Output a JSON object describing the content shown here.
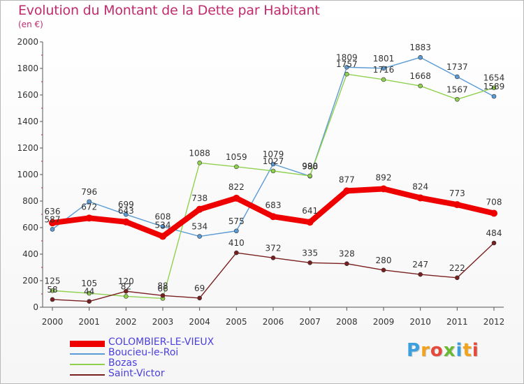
{
  "chart_data": {
    "type": "line",
    "title": "Evolution du Montant de la Dette par Habitant",
    "subtitle": "(en €)",
    "x": [
      "2000",
      "2001",
      "2002",
      "2003",
      "2004",
      "2005",
      "2006",
      "2007",
      "2008",
      "2009",
      "2010",
      "2011",
      "2012"
    ],
    "yticks": [
      "0",
      "200",
      "400",
      "600",
      "800",
      "1000",
      "1200",
      "1400",
      "1600",
      "1800",
      "2000"
    ],
    "ylim": [
      0,
      2000
    ],
    "grid": false,
    "legend_position": "bottom-left",
    "series": [
      {
        "name": "COLOMBIER-LE-VIEUX",
        "color": "#ee0000",
        "values": [
          636,
          672,
          643,
          534,
          738,
          822,
          683,
          641,
          877,
          892,
          824,
          773,
          708
        ],
        "labels": [
          "636",
          "672",
          "643",
          "534",
          "738",
          "822",
          "683",
          "641",
          "877",
          "892",
          "824",
          "773",
          "708"
        ]
      },
      {
        "name": "Boucieu-le-Roi",
        "color": "#5b9bd5",
        "values": [
          587,
          796,
          699,
          608,
          534,
          575,
          1079,
          988,
          1809,
          1801,
          1883,
          1737,
          1589
        ],
        "labels": [
          "587",
          "796",
          "699",
          "608",
          "534",
          "575",
          "1079",
          "988",
          "1809",
          "1801",
          "1883",
          "1737",
          "1589"
        ]
      },
      {
        "name": "Bozas",
        "color": "#8fd14f",
        "values": [
          125,
          105,
          82,
          66,
          1088,
          1059,
          1027,
          990,
          1757,
          1716,
          1668,
          1567,
          1654
        ],
        "labels": [
          "125",
          "105",
          "82",
          "66",
          "1088",
          "1059",
          "1027",
          "990",
          "1757",
          "1716",
          "1668",
          "1567",
          "1654"
        ]
      },
      {
        "name": "Saint-Victor",
        "color": "#7a1f1f",
        "values": [
          58,
          44,
          120,
          88,
          69,
          410,
          372,
          335,
          328,
          280,
          247,
          222,
          484
        ],
        "labels": [
          "58",
          "44",
          "120",
          "88",
          "69",
          "410",
          "372",
          "335",
          "328",
          "280",
          "247",
          "222",
          "484"
        ]
      }
    ]
  },
  "brand": {
    "letters": [
      "P",
      "r",
      "o",
      "x",
      "i",
      "t",
      "i"
    ],
    "colors": [
      "#3aa0e0",
      "#f2a21b",
      "#e5493b",
      "#6ab935",
      "#3aa0e0",
      "#f2a21b",
      "#e5493b"
    ]
  }
}
